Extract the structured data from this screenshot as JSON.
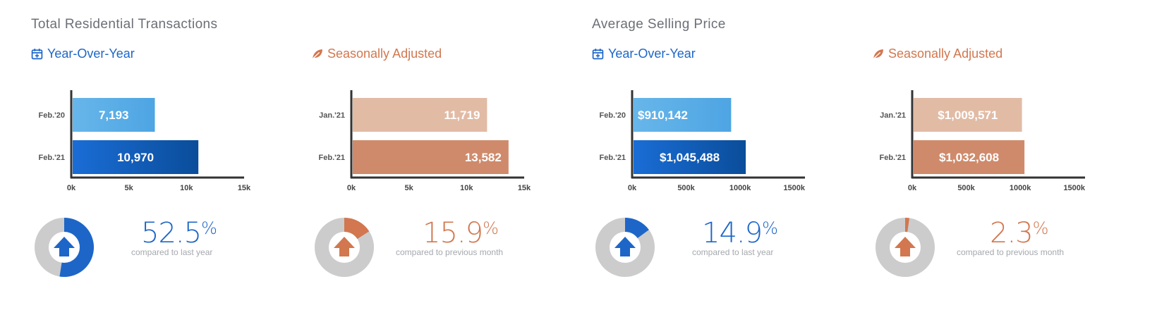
{
  "sections": [
    {
      "title": "Total Residential Transactions"
    },
    {
      "title": "Average Selling Price"
    }
  ],
  "colors": {
    "blue_light": "#5aaee6",
    "blue_dark_start": "#1a6dd6",
    "blue_dark_end": "#0a4d9a",
    "orange_light": "#e2bba5",
    "orange_dark": "#cf8a6b",
    "accent_blue": "#1d66c8",
    "accent_orange": "#d2774f",
    "donut_track": "#cccccc",
    "axis": "#333333"
  },
  "panels": [
    {
      "heading": "Year-Over-Year",
      "icon": "calendar-icon",
      "accent": "#1d66c8",
      "percent": "52.5",
      "percent_symbol": "%",
      "compare_text": "compared to last year",
      "donut_fraction": 0.525
    },
    {
      "heading": "Seasonally Adjusted",
      "icon": "leaf-icon",
      "accent": "#d2774f",
      "percent": "15.9",
      "percent_symbol": "%",
      "compare_text": "compared to previous month",
      "donut_fraction": 0.159
    },
    {
      "heading": "Year-Over-Year",
      "icon": "calendar-icon",
      "accent": "#1d66c8",
      "percent": "14.9",
      "percent_symbol": "%",
      "compare_text": "compared to last year",
      "donut_fraction": 0.149
    },
    {
      "heading": "Seasonally Adjusted",
      "icon": "leaf-icon",
      "accent": "#d2774f",
      "percent": "2.3",
      "percent_symbol": "%",
      "compare_text": "compared to previous month",
      "donut_fraction": 0.023
    }
  ],
  "chart_data": [
    {
      "type": "bar",
      "orientation": "horizontal",
      "categories": [
        "Feb.'20",
        "Feb.'21"
      ],
      "values": [
        7193,
        10970
      ],
      "value_labels": [
        "7,193",
        "10,970"
      ],
      "xlim": [
        0,
        15000
      ],
      "xticks": [
        0,
        5000,
        10000,
        15000
      ],
      "xtick_labels": [
        "0k",
        "5k",
        "10k",
        "15k"
      ],
      "bar_colors": [
        "blue_light",
        "blue_dark"
      ],
      "label_align": "center"
    },
    {
      "type": "bar",
      "orientation": "horizontal",
      "categories": [
        "Jan.'21",
        "Feb.'21"
      ],
      "values": [
        11719,
        13582
      ],
      "value_labels": [
        "11,719",
        "13,582"
      ],
      "xlim": [
        0,
        15000
      ],
      "xticks": [
        0,
        5000,
        10000,
        15000
      ],
      "xtick_labels": [
        "0k",
        "5k",
        "10k",
        "15k"
      ],
      "bar_colors": [
        "orange_light",
        "orange_dark"
      ],
      "label_align": "end"
    },
    {
      "type": "bar",
      "orientation": "horizontal",
      "categories": [
        "Feb.'20",
        "Feb.'21"
      ],
      "values": [
        910142,
        1045488
      ],
      "value_labels": [
        "$910,142",
        "$1,045,488"
      ],
      "xlim": [
        0,
        1600000
      ],
      "xticks": [
        0,
        500000,
        1000000,
        1500000
      ],
      "xtick_labels": [
        "0k",
        "500k",
        "1000k",
        "1500k"
      ],
      "bar_colors": [
        "blue_light",
        "blue_dark"
      ],
      "label_align": "start"
    },
    {
      "type": "bar",
      "orientation": "horizontal",
      "categories": [
        "Jan.'21",
        "Feb.'21"
      ],
      "values": [
        1009571,
        1032608
      ],
      "value_labels": [
        "$1,009,571",
        "$1,032,608"
      ],
      "xlim": [
        0,
        1600000
      ],
      "xticks": [
        0,
        500000,
        1000000,
        1500000
      ],
      "xtick_labels": [
        "0k",
        "500k",
        "1000k",
        "1500k"
      ],
      "bar_colors": [
        "orange_light",
        "orange_dark"
      ],
      "label_align": "center"
    }
  ]
}
